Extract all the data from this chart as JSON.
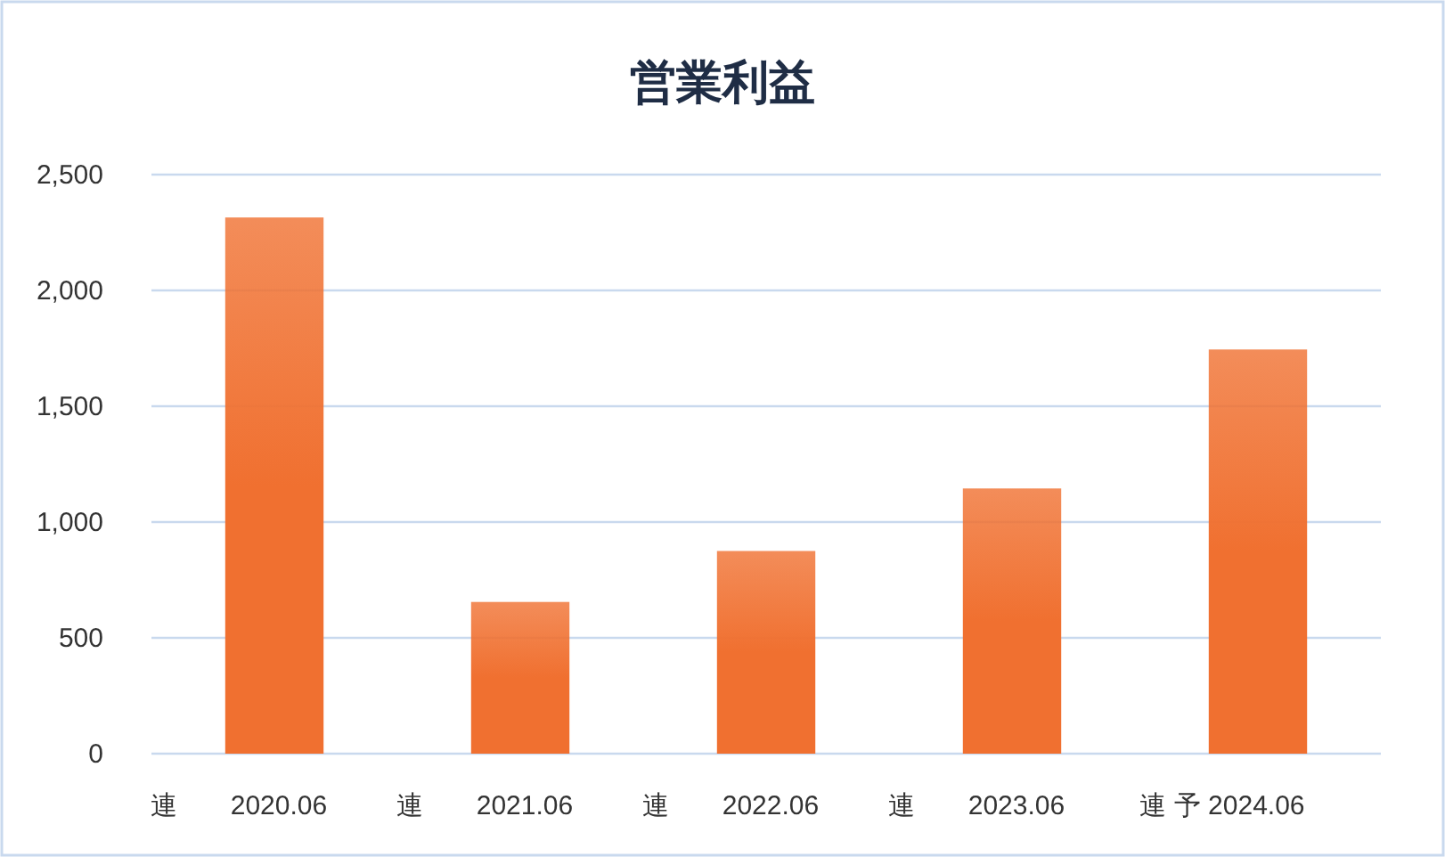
{
  "chart_data": {
    "type": "bar",
    "title": "営業利益",
    "categories": [
      "連　　2020.06",
      "連　　2021.06",
      "連　　2022.06",
      "連　　2023.06",
      "連 予 2024.06"
    ],
    "values": [
      2315,
      655,
      875,
      1145,
      1745
    ],
    "color": "#f07030",
    "ylim": [
      0,
      2500
    ],
    "yticks": [
      {
        "value": 0,
        "label": "0"
      },
      {
        "value": 500,
        "label": "500"
      },
      {
        "value": 1000,
        "label": "1,000"
      },
      {
        "value": 1500,
        "label": "1,500"
      },
      {
        "value": 2000,
        "label": "2,000"
      },
      {
        "value": 2500,
        "label": "2,500"
      }
    ],
    "grid": "y"
  }
}
